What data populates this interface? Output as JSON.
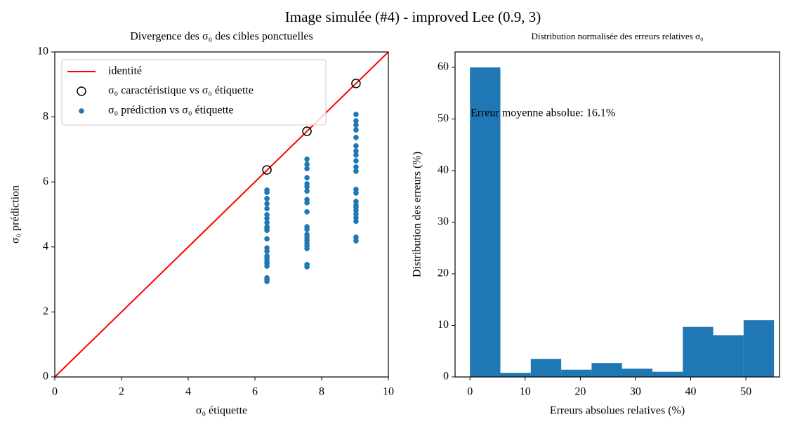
{
  "suptitle": "Image simulée (#4) - improved Lee (0.9, 3)",
  "chart_data": [
    {
      "type": "scatter",
      "title": "Divergence des σ₀ des cibles ponctuelles",
      "xlabel": "σ₀ étiquette",
      "ylabel": "σ₀ prédiction",
      "xlim": [
        0,
        10
      ],
      "ylim": [
        0,
        10
      ],
      "xticks": [
        0,
        2,
        4,
        6,
        8,
        10
      ],
      "yticks": [
        0,
        2,
        4,
        6,
        8,
        10
      ],
      "legend": "upper left",
      "series": [
        {
          "name": "identité",
          "color": "#ff0000",
          "marker": "line",
          "x": [
            0,
            10
          ],
          "values": [
            0,
            10
          ]
        },
        {
          "name": "σ₀ caractéristique vs σ₀ étiquette",
          "color": "#000000",
          "marker": "open-circle",
          "x": [
            6.36,
            7.56,
            9.03
          ],
          "values": [
            6.37,
            7.56,
            9.03
          ]
        },
        {
          "name": "σ₀ prédiction vs σ₀ étiquette",
          "color": "#1f77b4",
          "marker": "dot",
          "x": [
            6.36,
            6.36,
            6.36,
            6.36,
            6.36,
            6.36,
            6.36,
            6.36,
            6.36,
            6.36,
            6.36,
            6.36,
            6.36,
            6.36,
            6.36,
            6.36,
            6.36,
            6.36,
            6.36,
            6.36,
            6.36,
            6.36,
            7.56,
            7.56,
            7.56,
            7.56,
            7.56,
            7.56,
            7.56,
            7.56,
            7.56,
            7.56,
            7.56,
            7.56,
            7.56,
            7.56,
            7.56,
            7.56,
            7.56,
            7.56,
            7.56,
            7.56,
            9.03,
            9.03,
            9.03,
            9.03,
            9.03,
            9.03,
            9.03,
            9.03,
            9.03,
            9.03,
            9.03,
            9.03,
            9.03,
            9.03,
            9.03,
            9.03,
            9.03,
            9.03,
            9.03,
            9.03,
            9.03,
            9.03
          ],
          "values": [
            5.75,
            5.68,
            5.49,
            5.33,
            5.18,
            4.99,
            4.88,
            4.75,
            4.62,
            4.58,
            4.51,
            4.25,
            3.97,
            3.87,
            3.72,
            3.65,
            3.56,
            3.5,
            3.41,
            3.05,
            3.0,
            2.94,
            6.7,
            6.54,
            6.41,
            6.13,
            5.94,
            5.85,
            5.72,
            5.46,
            5.36,
            5.08,
            4.62,
            4.54,
            4.38,
            4.3,
            4.21,
            4.12,
            4.04,
            3.95,
            3.46,
            3.39,
            8.08,
            7.88,
            7.75,
            7.6,
            7.37,
            7.11,
            6.95,
            6.83,
            6.65,
            6.46,
            6.33,
            5.77,
            5.66,
            5.4,
            5.29,
            5.21,
            5.12,
            5.01,
            4.9,
            4.79,
            4.3,
            4.19
          ]
        }
      ]
    },
    {
      "type": "histogram",
      "title": "Distribution normalisée des erreurs relatives σ₀",
      "xlabel": "Erreurs absolues relatives (%)",
      "ylabel": "Distribution des erreurs (%)",
      "annotation": "Erreur moyenne absolue: 16.1%",
      "color": "#1f77b4",
      "bins": [
        0,
        5.51,
        11.02,
        16.53,
        22.04,
        27.55,
        33.06,
        38.57,
        44.08,
        49.59,
        55.1
      ],
      "values": [
        60,
        0.8,
        3.5,
        1.4,
        2.7,
        1.6,
        1.0,
        9.7,
        8.1,
        11.0
      ],
      "xlim": [
        -2.7,
        56.1
      ],
      "ylim": [
        0,
        63
      ],
      "xticks": [
        0,
        10,
        20,
        30,
        40,
        50
      ],
      "yticks": [
        0,
        10,
        20,
        30,
        40,
        50,
        60
      ]
    }
  ]
}
